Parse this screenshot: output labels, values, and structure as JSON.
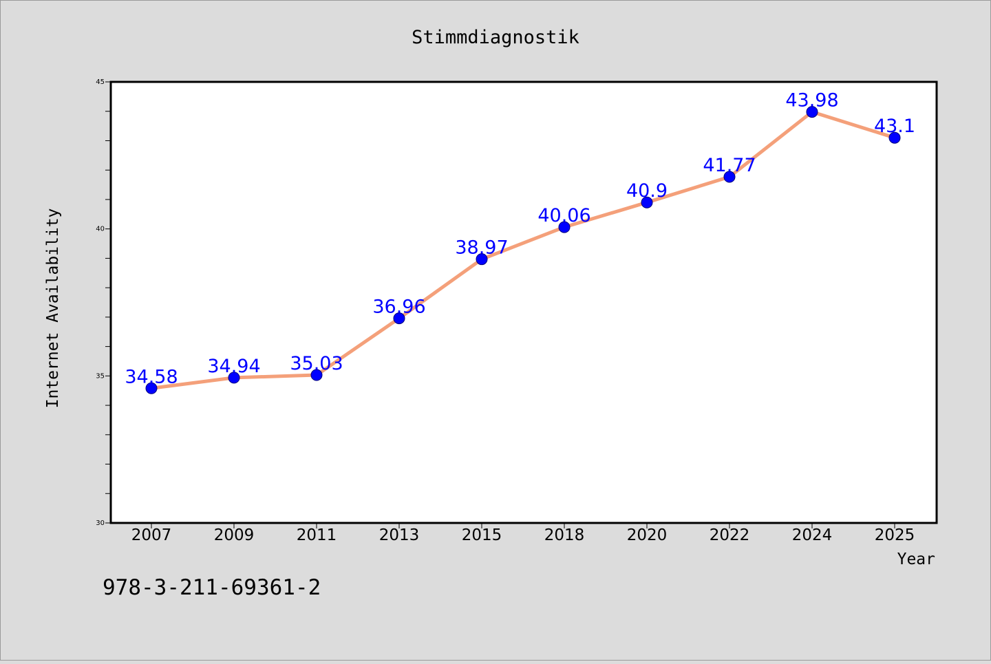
{
  "footnote": "978-3-211-69361-2",
  "colors": {
    "background": "#dcdcdc",
    "plot_background": "#ffffff",
    "line": "#f4a07a",
    "marker": "#0000ff",
    "data_label": "#0000ff"
  },
  "chart_data": {
    "type": "line",
    "title": "Stimmdiagnostik",
    "xlabel": "Year",
    "ylabel": "Internet Availability",
    "categories": [
      "2007",
      "2009",
      "2011",
      "2013",
      "2015",
      "2018",
      "2020",
      "2022",
      "2024",
      "2025"
    ],
    "series": [
      {
        "values": [
          34.58,
          34.94,
          35.03,
          36.96,
          38.97,
          40.06,
          40.9,
          41.77,
          43.98,
          43.1
        ],
        "labels": [
          "34.58",
          "34.94",
          "35.03",
          "36.96",
          "38.97",
          "40.06",
          "40.9",
          "41.77",
          "43.98",
          "43.1"
        ]
      }
    ],
    "ylim": [
      30,
      45
    ],
    "yticks": [
      "30",
      "35",
      "40",
      "45"
    ],
    "minor_ticks_per_major": 5,
    "grid": false,
    "legend": "none"
  }
}
